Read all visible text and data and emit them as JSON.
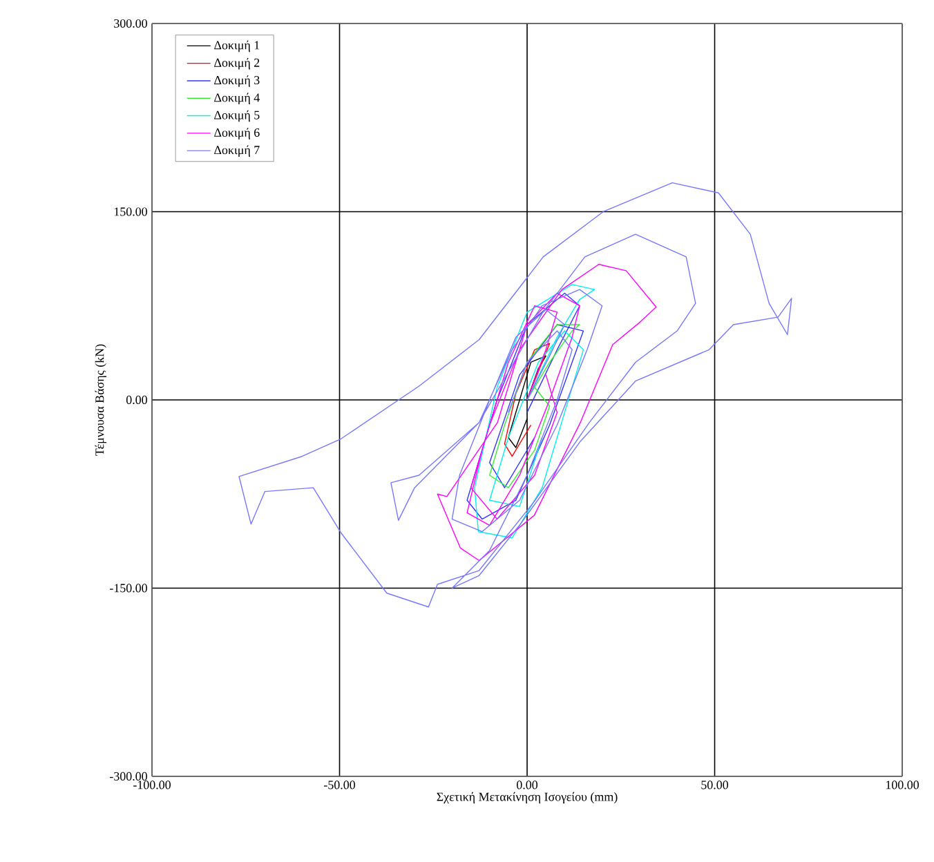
{
  "chart_data": {
    "type": "line",
    "xlabel": "Σχετική Μετακίνηση Ισογείου (mm)",
    "ylabel": "Τέμνουσα Βάσης (kN)",
    "xlim": [
      -100,
      100
    ],
    "ylim": [
      -300,
      300
    ],
    "xticks": [
      {
        "value": -100,
        "label": "-100.00"
      },
      {
        "value": -50,
        "label": "-50.00"
      },
      {
        "value": 0,
        "label": "0.00"
      },
      {
        "value": 50,
        "label": "50.00"
      },
      {
        "value": 100,
        "label": "100.00"
      }
    ],
    "yticks": [
      {
        "value": -300,
        "label": "-300.00"
      },
      {
        "value": -150,
        "label": "-150.00"
      },
      {
        "value": 0,
        "label": "0.00"
      },
      {
        "value": 150,
        "label": "150.00"
      },
      {
        "value": 300,
        "label": "300.00"
      }
    ],
    "grid": true,
    "legend": "top left",
    "marker": "none",
    "line_style": "solid",
    "series": [
      {
        "name": "Δοκιμή 1",
        "color": "#000000",
        "x": [
          0,
          3,
          5,
          1,
          -2,
          -5,
          -3,
          0
        ],
        "values": [
          0,
          25,
          35,
          30,
          0,
          -30,
          -38,
          -15
        ]
      },
      {
        "name": "Δοκιμή 2",
        "color": "#ff0000",
        "x": [
          0,
          4,
          6,
          2,
          -3,
          -6,
          -4,
          1
        ],
        "values": [
          0,
          30,
          45,
          40,
          5,
          -35,
          -45,
          -20
        ]
      },
      {
        "name": "Δοκιμή 3",
        "color": "#3333ff",
        "x": [
          0,
          8,
          14,
          10,
          0,
          -8,
          -16,
          -12,
          -3,
          6,
          12,
          15,
          8,
          -2,
          -10,
          -6,
          2
        ],
        "values": [
          -10,
          40,
          75,
          85,
          60,
          0,
          -80,
          -95,
          -80,
          -20,
          30,
          55,
          60,
          20,
          -50,
          -70,
          -30
        ]
      },
      {
        "name": "Δοκιμή 4",
        "color": "#33ee33",
        "x": [
          0,
          6,
          12,
          14,
          8,
          0,
          -6,
          -10,
          -5,
          2,
          6,
          2
        ],
        "values": [
          0,
          30,
          55,
          60,
          60,
          30,
          -20,
          -60,
          -70,
          -40,
          -5,
          10
        ]
      },
      {
        "name": "Δοκιμή 5",
        "color": "#00eeee",
        "x": [
          0,
          8,
          14,
          18,
          12,
          0,
          -8,
          -14,
          -13,
          -4,
          4,
          10,
          15,
          10,
          3,
          -5,
          -10,
          -2,
          4
        ],
        "values": [
          0,
          50,
          80,
          88,
          92,
          70,
          10,
          -70,
          -105,
          -110,
          -70,
          -10,
          40,
          55,
          30,
          -30,
          -80,
          -85,
          -30
        ]
      },
      {
        "name": "Δοκιμή 6",
        "color": "#ff00ff",
        "x": [
          0,
          5,
          8,
          2,
          -5,
          -12,
          -16,
          -10,
          -2,
          6,
          12,
          14,
          8,
          0,
          -7.9,
          -21.4,
          -23.9,
          -17.8,
          -12.8,
          1.9,
          14.2,
          22.8,
          30.1,
          34.4,
          26.4,
          19.1,
          9.3,
          -2,
          -10,
          -15,
          -8,
          2,
          8,
          5
        ],
        "values": [
          0,
          40,
          70,
          75,
          30,
          -40,
          -90,
          -100,
          -60,
          0,
          50,
          75,
          85,
          60,
          -18,
          -77,
          -75,
          -118,
          -128,
          -92,
          -18,
          44,
          62,
          74,
          103,
          108,
          88,
          40,
          -20,
          -70,
          -95,
          -60,
          -10,
          20
        ]
      },
      {
        "name": "Δοκιμή 7",
        "color": "#7777ff",
        "x": [
          0,
          6,
          10,
          5,
          -3,
          -10,
          -18,
          -20,
          -12,
          -2,
          8,
          16,
          20,
          14,
          4,
          -4,
          -12.8,
          -30,
          -34.3,
          -36.3,
          -28.8,
          -12.8,
          4.2,
          15.4,
          28.9,
          42.4,
          44.9,
          40,
          28.9,
          16.6,
          1.9,
          -12.8,
          -23.9,
          -26.3,
          -37.4,
          -49.6,
          -57,
          -69.9,
          -73.6,
          -76.8,
          -60,
          -49.6,
          -28.8,
          -12.8,
          4.3,
          20.3,
          38.7,
          51,
          59.5,
          64.5,
          69.4,
          70.5,
          66.9,
          55,
          48.5,
          28.9,
          14.2,
          -1.8,
          -12.8,
          -20,
          -10,
          0,
          8,
          12,
          8,
          0,
          -5
        ],
        "values": [
          0,
          35,
          60,
          72,
          50,
          0,
          -60,
          -95,
          -105,
          -80,
          -20,
          40,
          75,
          88,
          75,
          40,
          -18,
          -70,
          -96,
          -66,
          -60,
          -18,
          70,
          114,
          132,
          114,
          77,
          55,
          30,
          -18,
          -81,
          -136,
          -147,
          -165,
          -154,
          -106,
          -70,
          -73,
          -99,
          -61,
          -45,
          -31,
          11,
          48,
          114,
          150,
          173,
          165,
          132,
          77,
          52,
          81,
          66,
          60,
          40,
          15,
          -33,
          -99,
          -140,
          -150,
          -120,
          -60,
          0,
          40,
          55,
          30,
          -10
        ]
      }
    ]
  }
}
